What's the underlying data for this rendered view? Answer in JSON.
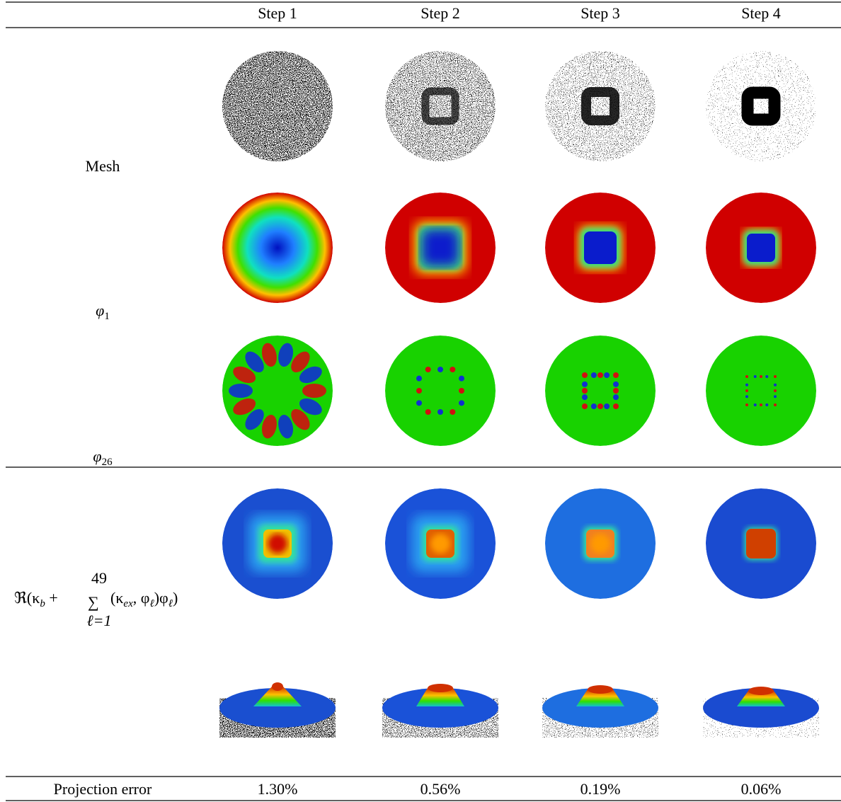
{
  "header": {
    "columns": [
      "Step 1",
      "Step 2",
      "Step 3",
      "Step 4"
    ]
  },
  "rows": {
    "mesh": "Mesh",
    "phi1": [
      "φ",
      "1"
    ],
    "phi26": [
      "φ",
      "26"
    ],
    "formula": [
      "ℜ(κ",
      "b",
      " + ",
      "∑",
      "49",
      "ℓ=1",
      "(κ",
      "ex",
      ", φ",
      "ℓ",
      ")φ",
      "ℓ",
      ")"
    ]
  },
  "footer": {
    "label": "Projection error",
    "values": [
      "1.30%",
      "0.56%",
      "0.19%",
      "0.06%"
    ]
  }
}
